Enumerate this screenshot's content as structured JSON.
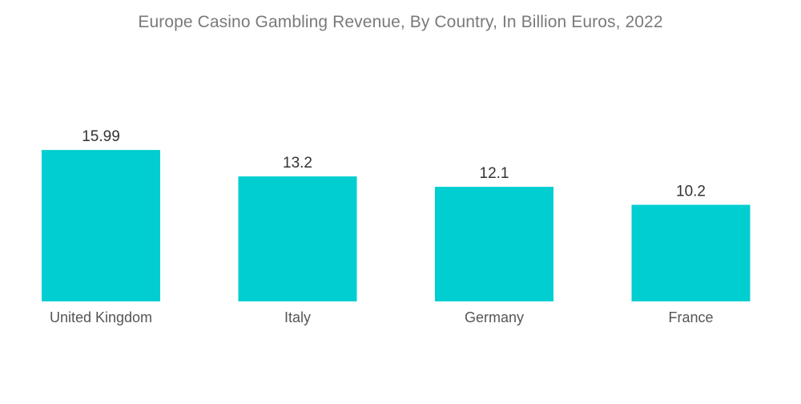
{
  "chart_data": {
    "type": "bar",
    "title": "Europe Casino Gambling Revenue, By Country, In Billion Euros, 2022",
    "categories": [
      "United Kingdom",
      "Italy",
      "Germany",
      "France"
    ],
    "values": [
      15.99,
      13.2,
      12.1,
      10.2
    ],
    "value_labels": [
      "15.99",
      "13.2",
      "12.1",
      "10.2"
    ],
    "xlabel": "",
    "ylabel": "",
    "ylim": [
      0,
      16
    ],
    "grid": false,
    "legend": "none",
    "colors": {
      "bar": "#00CED1"
    }
  }
}
